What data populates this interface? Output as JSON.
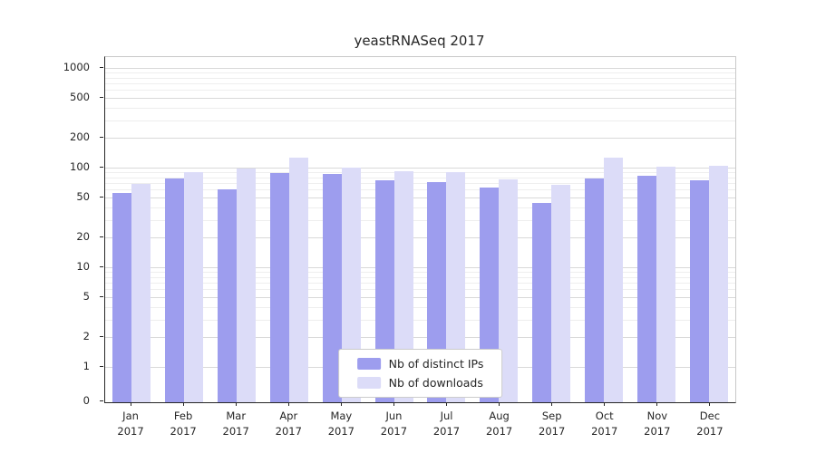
{
  "chart_data": {
    "type": "bar",
    "title": "yeastRNASeq 2017",
    "x": [
      "Jan",
      "Feb",
      "Mar",
      "Apr",
      "May",
      "Jun",
      "Jul",
      "Aug",
      "Sep",
      "Oct",
      "Nov",
      "Dec"
    ],
    "year": "2017",
    "series": [
      {
        "name": "Nb of distinct IPs",
        "color": "#9d9dee",
        "values": [
          57,
          80,
          62,
          90,
          88,
          76,
          73,
          65,
          45,
          80,
          85,
          76
        ]
      },
      {
        "name": "Nb of downloads",
        "color": "#dcdcf8",
        "values": [
          70,
          93,
          100,
          130,
          102,
          95,
          92,
          78,
          68,
          128,
          105,
          107
        ]
      }
    ],
    "y_scale": "symlog",
    "y_ticks": [
      0,
      1,
      2,
      5,
      10,
      20,
      50,
      100,
      200,
      500,
      1000
    ],
    "ylim": [
      0,
      1300
    ],
    "grid": true,
    "legend_position": "lower center",
    "colors": {
      "grid_major": "#d9d9d9",
      "grid_minor": "#eeeeee",
      "axis": "#262626"
    }
  }
}
